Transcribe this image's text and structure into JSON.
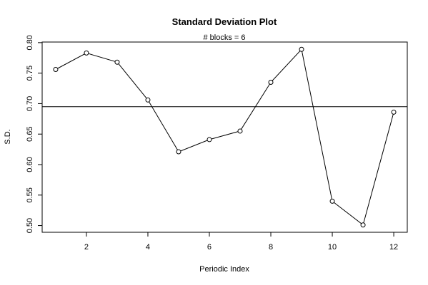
{
  "chart_data": {
    "type": "line",
    "title": "Standard Deviation Plot",
    "subtitle": "# blocks =  6",
    "xlabel": "Periodic Index",
    "ylabel": "S.D.",
    "x": [
      1,
      2,
      3,
      4,
      5,
      6,
      7,
      8,
      9,
      10,
      11,
      12
    ],
    "values": [
      0.756,
      0.783,
      0.768,
      0.706,
      0.621,
      0.641,
      0.655,
      0.735,
      0.789,
      0.54,
      0.501,
      0.686
    ],
    "reference_line": 0.695,
    "xlim": [
      0.56,
      12.44
    ],
    "ylim": [
      0.489,
      0.801
    ],
    "xticks": [
      2,
      4,
      6,
      8,
      10,
      12
    ],
    "yticks": [
      "0.50",
      "0.55",
      "0.60",
      "0.65",
      "0.70",
      "0.75",
      "0.80"
    ],
    "grid": false,
    "markers": "open-circle"
  }
}
